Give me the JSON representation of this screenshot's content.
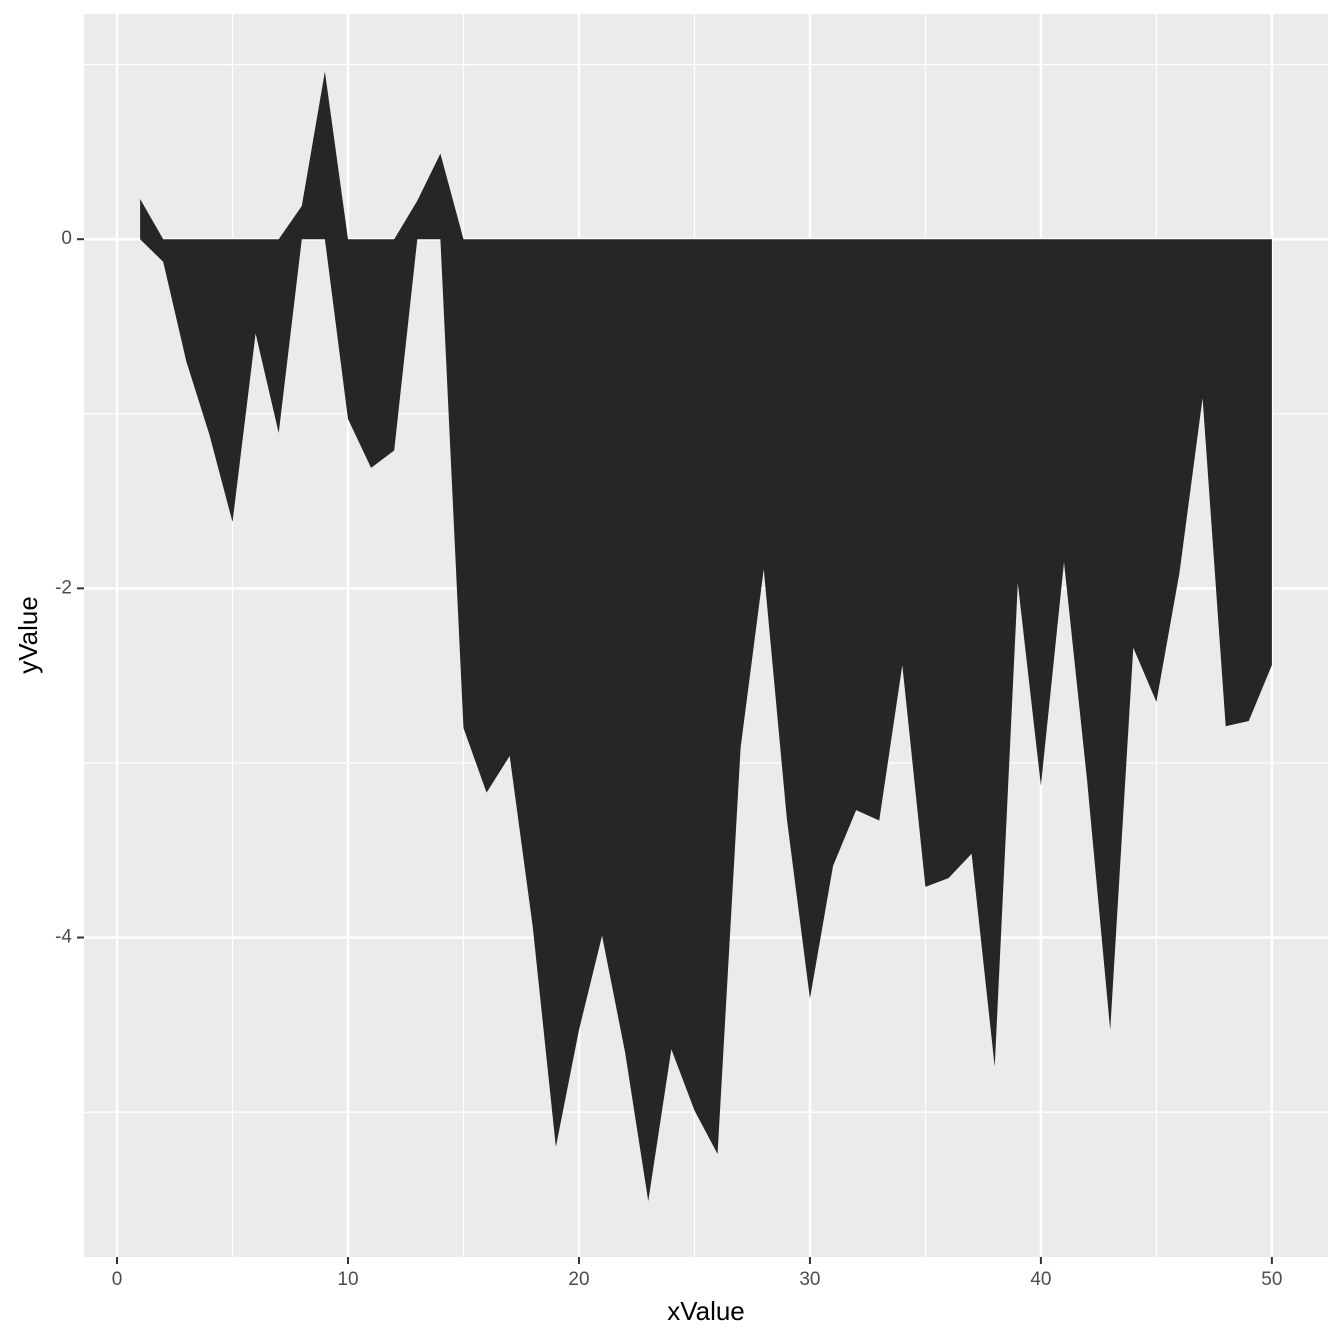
{
  "chart_data": {
    "type": "area",
    "x_label": "xValue",
    "y_label": "yValue",
    "x": [
      1,
      2,
      3,
      4,
      5,
      6,
      7,
      8,
      9,
      10,
      11,
      12,
      13,
      14,
      15,
      16,
      17,
      18,
      19,
      20,
      21,
      22,
      23,
      24,
      25,
      26,
      27,
      28,
      29,
      30,
      31,
      32,
      33,
      34,
      35,
      36,
      37,
      38,
      39,
      40,
      41,
      42,
      43,
      44,
      45,
      46,
      47,
      48,
      49,
      50
    ],
    "values": [
      0.23,
      -0.13,
      -0.7,
      -1.12,
      -1.62,
      -0.54,
      -1.11,
      0.19,
      0.96,
      -1.03,
      -1.31,
      -1.21,
      0.22,
      0.49,
      -2.8,
      -3.17,
      -2.96,
      -3.94,
      -5.2,
      -4.53,
      -3.99,
      -4.66,
      -5.51,
      -4.64,
      -4.99,
      -5.24,
      -2.91,
      -1.89,
      -3.32,
      -4.35,
      -3.59,
      -3.27,
      -3.33,
      -2.44,
      -3.71,
      -3.66,
      -3.52,
      -4.74,
      -1.97,
      -3.13,
      -1.85,
      -3.1,
      -4.53,
      -2.34,
      -2.65,
      -1.91,
      -0.91,
      -2.79,
      -2.76,
      -2.44
    ],
    "color": "#262626",
    "xlim": [
      -1.43,
      52.43
    ],
    "ylim": [
      -5.83,
      1.29
    ],
    "xticks": [
      0,
      10,
      20,
      30,
      40,
      50
    ],
    "yticks": [
      0,
      -2,
      -4
    ],
    "grid": true
  }
}
